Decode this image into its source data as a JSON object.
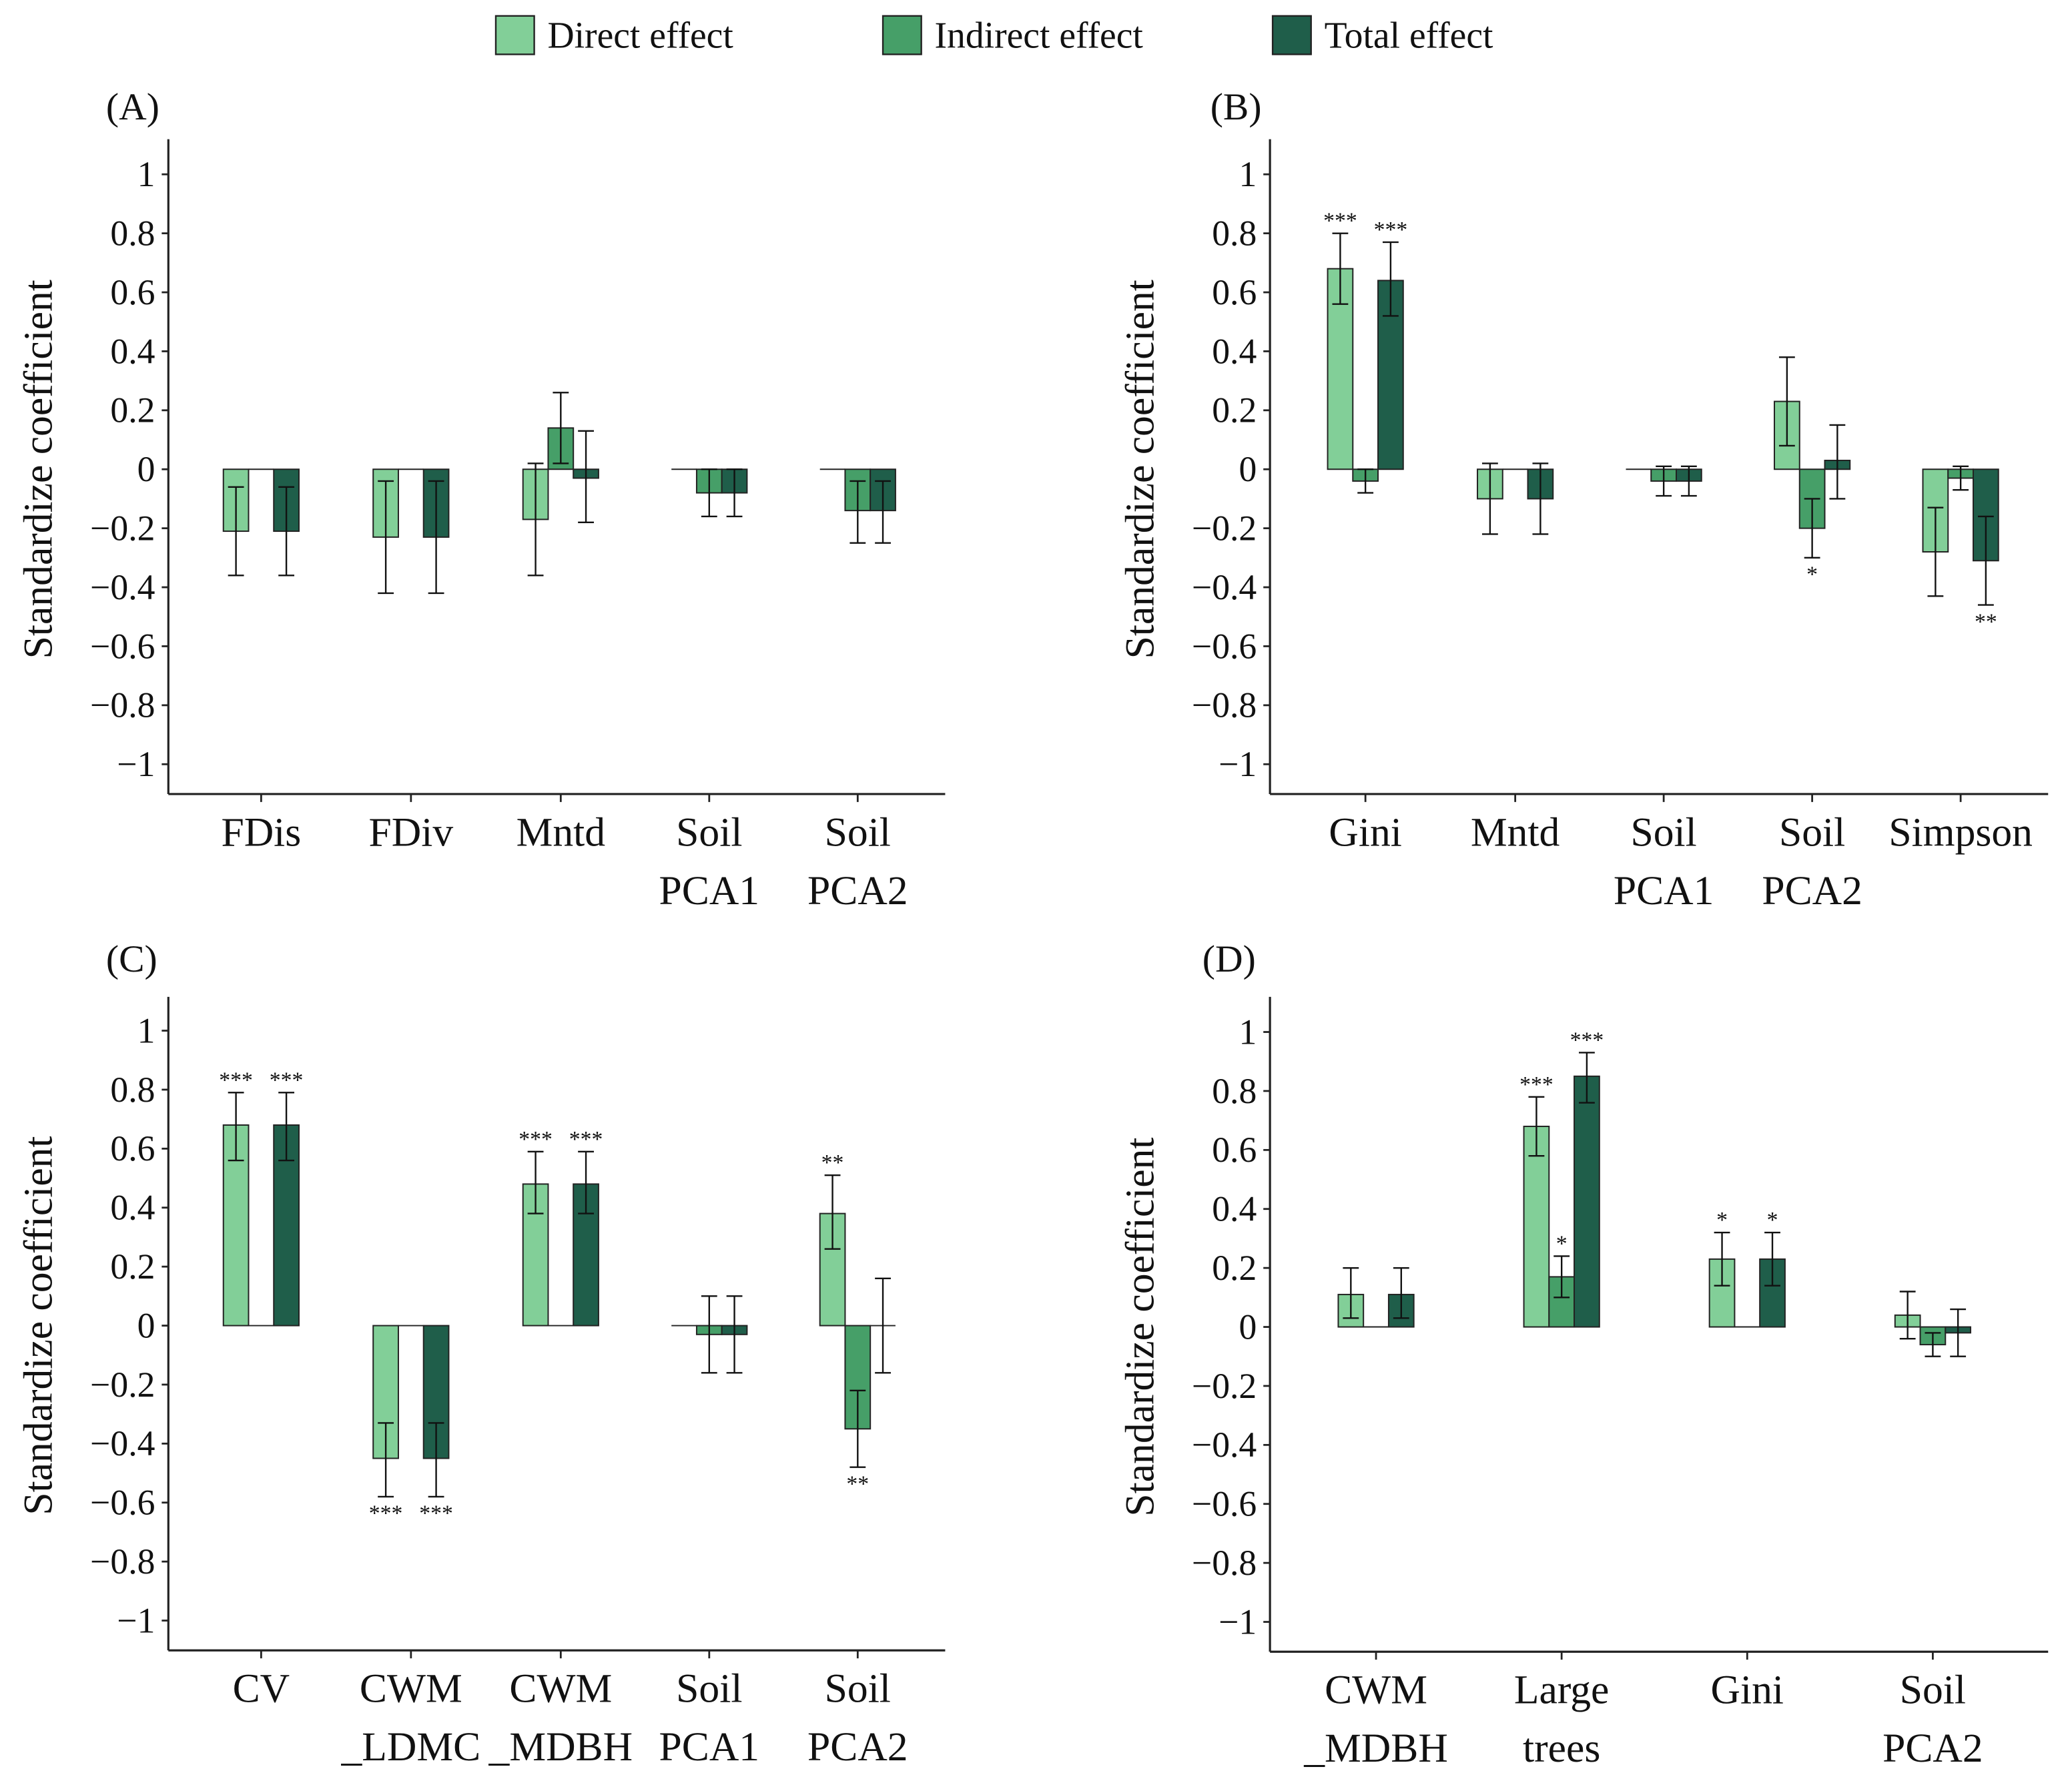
{
  "legend": [
    {
      "label": "Direct effect",
      "color": "#82CF98"
    },
    {
      "label": "Indirect effect",
      "color": "#469F68"
    },
    {
      "label": "Total effect",
      "color": "#1F5E4A"
    }
  ],
  "chart_data": [
    {
      "panel": "(A)",
      "type": "bar",
      "ylabel": "Standardize coefficient",
      "ylim": [
        -1,
        1
      ],
      "yticks": [
        "1",
        "0.8",
        "0.6",
        "0.4",
        "0.2",
        "0",
        "−0.2",
        "−0.4",
        "−0.6",
        "−0.8",
        "−1"
      ],
      "categories": [
        [
          "FDis"
        ],
        [
          "FDiv"
        ],
        [
          "Mntd"
        ],
        [
          "Soil",
          "PCA1"
        ],
        [
          "Soil",
          "PCA2"
        ]
      ],
      "series": [
        {
          "name": "Direct effect",
          "values": [
            -0.21,
            -0.23,
            -0.17,
            0,
            0
          ],
          "lower": [
            -0.36,
            -0.42,
            -0.36,
            null,
            null
          ],
          "upper": [
            -0.06,
            -0.04,
            0.02,
            null,
            null
          ],
          "sig": [
            "",
            "",
            "",
            "",
            ""
          ]
        },
        {
          "name": "Indirect effect",
          "values": [
            0,
            0,
            0.14,
            -0.08,
            -0.14
          ],
          "lower": [
            null,
            null,
            0.02,
            -0.16,
            -0.25
          ],
          "upper": [
            null,
            null,
            0.26,
            0.0,
            -0.04
          ],
          "sig": [
            "",
            "",
            "",
            "",
            ""
          ]
        },
        {
          "name": "Total effect",
          "values": [
            -0.21,
            -0.23,
            -0.03,
            -0.08,
            -0.14
          ],
          "lower": [
            -0.36,
            -0.42,
            -0.18,
            -0.16,
            -0.25
          ],
          "upper": [
            -0.06,
            -0.04,
            0.13,
            0.0,
            -0.04
          ],
          "sig": [
            "",
            "",
            "",
            "",
            ""
          ]
        }
      ]
    },
    {
      "panel": "(B)",
      "type": "bar",
      "ylabel": "Standardize coefficient",
      "ylim": [
        -1,
        1
      ],
      "yticks": [
        "1",
        "0.8",
        "0.6",
        "0.4",
        "0.2",
        "0",
        "−0.2",
        "−0.4",
        "−0.6",
        "−0.8",
        "−1"
      ],
      "categories": [
        [
          "Gini"
        ],
        [
          "Mntd"
        ],
        [
          "Soil",
          "PCA1"
        ],
        [
          "Soil",
          "PCA2"
        ],
        [
          "Simpson"
        ]
      ],
      "series": [
        {
          "name": "Direct effect",
          "values": [
            0.68,
            -0.1,
            0,
            0.23,
            -0.28
          ],
          "lower": [
            0.56,
            -0.22,
            null,
            0.08,
            -0.43
          ],
          "upper": [
            0.8,
            0.02,
            null,
            0.38,
            -0.13
          ],
          "sig": [
            "***",
            "",
            "",
            "",
            ""
          ]
        },
        {
          "name": "Indirect effect",
          "values": [
            -0.04,
            0,
            -0.04,
            -0.2,
            -0.03
          ],
          "lower": [
            -0.08,
            null,
            -0.09,
            -0.3,
            -0.07
          ],
          "upper": [
            0.0,
            null,
            0.01,
            -0.1,
            0.01
          ],
          "sig": [
            "",
            "",
            "",
            "*",
            ""
          ]
        },
        {
          "name": "Total effect",
          "values": [
            0.64,
            -0.1,
            -0.04,
            0.03,
            -0.31
          ],
          "lower": [
            0.52,
            -0.22,
            -0.09,
            -0.1,
            -0.46
          ],
          "upper": [
            0.77,
            0.02,
            0.01,
            0.15,
            -0.16
          ],
          "sig": [
            "***",
            "",
            "",
            "",
            "**"
          ]
        }
      ]
    },
    {
      "panel": "(C)",
      "type": "bar",
      "ylabel": "Standardize coefficient",
      "ylim": [
        -1,
        1
      ],
      "yticks": [
        "1",
        "0.8",
        "0.6",
        "0.4",
        "0.2",
        "0",
        "−0.2",
        "−0.4",
        "−0.6",
        "−0.8",
        "−1"
      ],
      "categories": [
        [
          "CV"
        ],
        [
          "CWM",
          "_LDMC"
        ],
        [
          "CWM",
          "_MDBH"
        ],
        [
          "Soil",
          "PCA1"
        ],
        [
          "Soil",
          "PCA2"
        ]
      ],
      "series": [
        {
          "name": "Direct effect",
          "values": [
            0.68,
            -0.45,
            0.48,
            0,
            0.38
          ],
          "lower": [
            0.56,
            -0.58,
            0.38,
            null,
            0.26
          ],
          "upper": [
            0.79,
            -0.33,
            0.59,
            null,
            0.51
          ],
          "sig": [
            "***",
            "***",
            "***",
            "",
            "**"
          ]
        },
        {
          "name": "Indirect effect",
          "values": [
            0,
            0,
            0,
            -0.03,
            -0.35
          ],
          "lower": [
            null,
            null,
            null,
            -0.16,
            -0.48
          ],
          "upper": [
            null,
            null,
            null,
            0.1,
            -0.22
          ],
          "sig": [
            "",
            "",
            "",
            "",
            "**"
          ]
        },
        {
          "name": "Total effect",
          "values": [
            0.68,
            -0.45,
            0.48,
            -0.03,
            0.0
          ],
          "lower": [
            0.56,
            -0.58,
            0.38,
            -0.16,
            -0.16
          ],
          "upper": [
            0.79,
            -0.33,
            0.59,
            0.1,
            0.16
          ],
          "sig": [
            "***",
            "***",
            "***",
            "",
            ""
          ]
        }
      ]
    },
    {
      "panel": "(D)",
      "type": "bar",
      "ylabel": "Standardize coefficient",
      "ylim": [
        -1,
        1
      ],
      "yticks": [
        "1",
        "0.8",
        "0.6",
        "0.4",
        "0.2",
        "0",
        "−0.2",
        "−0.4",
        "−0.6",
        "−0.8",
        "−1"
      ],
      "categories": [
        [
          "CWM",
          "_MDBH"
        ],
        [
          "Large",
          "trees"
        ],
        [
          "Gini"
        ],
        [
          "Soil",
          "PCA2"
        ]
      ],
      "series": [
        {
          "name": "Direct effect",
          "values": [
            0.11,
            0.68,
            0.23,
            0.04
          ],
          "lower": [
            0.03,
            0.58,
            0.14,
            -0.04
          ],
          "upper": [
            0.2,
            0.78,
            0.32,
            0.12
          ],
          "sig": [
            "",
            "***",
            "*",
            ""
          ]
        },
        {
          "name": "Indirect effect",
          "values": [
            0,
            0.17,
            0,
            -0.06
          ],
          "lower": [
            null,
            0.1,
            null,
            -0.1
          ],
          "upper": [
            null,
            0.24,
            null,
            -0.02
          ],
          "sig": [
            "",
            "*",
            "",
            ""
          ]
        },
        {
          "name": "Total effect",
          "values": [
            0.11,
            0.85,
            0.23,
            -0.02
          ],
          "lower": [
            0.03,
            0.76,
            0.14,
            -0.1
          ],
          "upper": [
            0.2,
            0.93,
            0.32,
            0.06
          ],
          "sig": [
            "",
            "***",
            "*",
            ""
          ]
        }
      ]
    }
  ]
}
